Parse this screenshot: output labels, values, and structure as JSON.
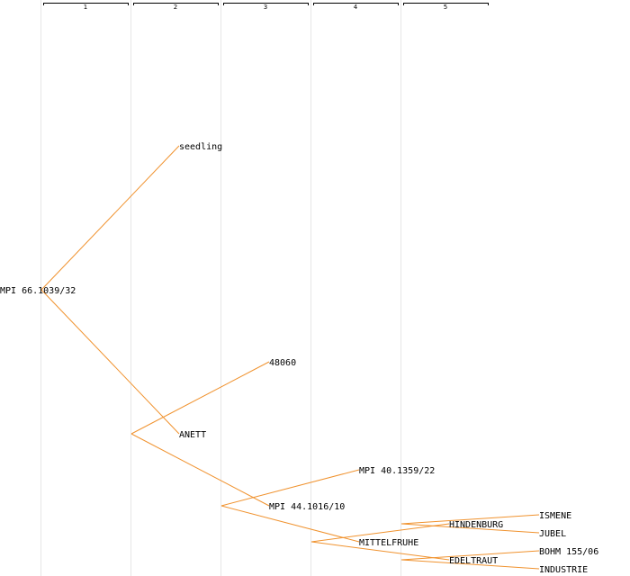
{
  "generations": [
    {
      "label": "1"
    },
    {
      "label": "2"
    },
    {
      "label": "3"
    },
    {
      "label": "4"
    },
    {
      "label": "5"
    }
  ],
  "colors": {
    "edge": "#f0922e",
    "divider": "#e6e6e6",
    "ruler": "#000000",
    "text": "#000000",
    "background": "#ffffff"
  },
  "nodes": [
    {
      "id": "n0",
      "label": "MPI 66.1039/32",
      "generation": 0
    },
    {
      "id": "n1",
      "label": "seedling",
      "generation": 1
    },
    {
      "id": "n2",
      "label": "ANETT",
      "generation": 1
    },
    {
      "id": "n3",
      "label": "48060",
      "generation": 2
    },
    {
      "id": "n4",
      "label": "MPI 44.1016/10",
      "generation": 2
    },
    {
      "id": "n5",
      "label": "MPI 40.1359/22",
      "generation": 3
    },
    {
      "id": "n6",
      "label": "MITTELFRUHE",
      "generation": 3
    },
    {
      "id": "n7",
      "label": "HINDENBURG",
      "generation": 4
    },
    {
      "id": "n8",
      "label": "EDELTRAUT",
      "generation": 4
    },
    {
      "id": "n9",
      "label": "ISMENE",
      "generation": 5
    },
    {
      "id": "n10",
      "label": "JUBEL",
      "generation": 5
    },
    {
      "id": "n11",
      "label": "BOHM 155/06",
      "generation": 5
    },
    {
      "id": "n12",
      "label": "INDUSTRIE",
      "generation": 5
    }
  ],
  "edges": [
    {
      "from": "n0",
      "to": "n1"
    },
    {
      "from": "n0",
      "to": "n2"
    },
    {
      "from": "n2",
      "to": "n3"
    },
    {
      "from": "n2",
      "to": "n4"
    },
    {
      "from": "n4",
      "to": "n5"
    },
    {
      "from": "n4",
      "to": "n6"
    },
    {
      "from": "n6",
      "to": "n7"
    },
    {
      "from": "n6",
      "to": "n8"
    },
    {
      "from": "n7",
      "to": "n9"
    },
    {
      "from": "n7",
      "to": "n10"
    },
    {
      "from": "n8",
      "to": "n11"
    },
    {
      "from": "n8",
      "to": "n12"
    }
  ]
}
